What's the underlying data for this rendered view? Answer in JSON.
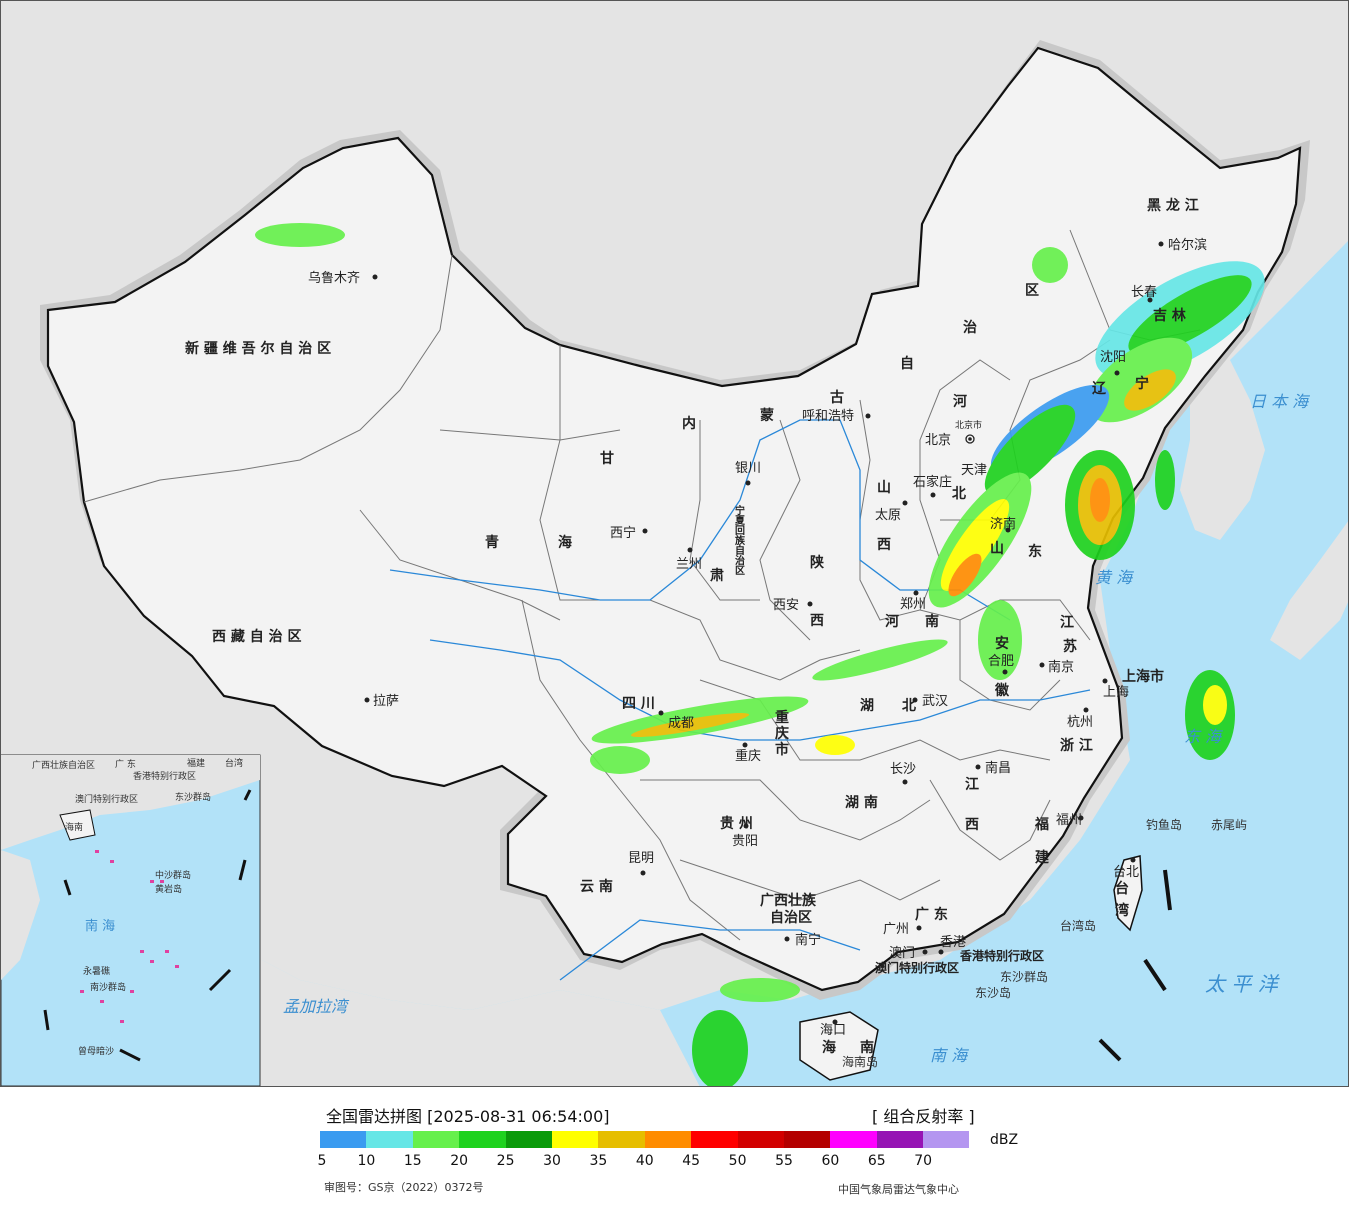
{
  "map": {
    "provinces": [
      {
        "key": "xinjiang",
        "text": "新 疆 维 吾 尔 自 治 区"
      },
      {
        "key": "xizang",
        "text": "西 藏 自 治 区"
      },
      {
        "key": "qinghai_a",
        "text": "青"
      },
      {
        "key": "qinghai_b",
        "text": "海"
      },
      {
        "key": "gansu_a",
        "text": "甘"
      },
      {
        "key": "gansu_b",
        "text": "肃"
      },
      {
        "key": "nmg_a",
        "text": "内"
      },
      {
        "key": "nmg_b",
        "text": "蒙"
      },
      {
        "key": "nmg_c",
        "text": "古"
      },
      {
        "key": "nmg_d",
        "text": "自"
      },
      {
        "key": "nmg_e",
        "text": "治"
      },
      {
        "key": "nmg_f",
        "text": "区"
      },
      {
        "key": "heilongjiang",
        "text": "黑 龙 江"
      },
      {
        "key": "jilin",
        "text": "吉 林"
      },
      {
        "key": "liaoning_a",
        "text": "辽"
      },
      {
        "key": "liaoning_b",
        "text": "宁"
      },
      {
        "key": "hebei_a",
        "text": "河"
      },
      {
        "key": "hebei_b",
        "text": "北"
      },
      {
        "key": "shanxi_a",
        "text": "山"
      },
      {
        "key": "shanxi_b",
        "text": "西"
      },
      {
        "key": "shaanxi_a",
        "text": "陕"
      },
      {
        "key": "shaanxi_b",
        "text": "西"
      },
      {
        "key": "ningxia",
        "text": "宁夏回族自治区"
      },
      {
        "key": "shandong_a",
        "text": "山"
      },
      {
        "key": "shandong_b",
        "text": "东"
      },
      {
        "key": "henan_a",
        "text": "河"
      },
      {
        "key": "henan_b",
        "text": "南"
      },
      {
        "key": "jiangsu_a",
        "text": "江"
      },
      {
        "key": "jiangsu_b",
        "text": "苏"
      },
      {
        "key": "anhui_a",
        "text": "安"
      },
      {
        "key": "anhui_b",
        "text": "徽"
      },
      {
        "key": "shanghai",
        "text": "上海市"
      },
      {
        "key": "zhejiang",
        "text": "浙 江"
      },
      {
        "key": "sichuan",
        "text": "四 川"
      },
      {
        "key": "chongqing_a",
        "text": "重"
      },
      {
        "key": "chongqing_b",
        "text": "庆"
      },
      {
        "key": "chongqing_c",
        "text": "市"
      },
      {
        "key": "hubei_a",
        "text": "湖"
      },
      {
        "key": "hubei_b",
        "text": "北"
      },
      {
        "key": "hunan",
        "text": "湖 南"
      },
      {
        "key": "jiangxi_a",
        "text": "江"
      },
      {
        "key": "jiangxi_b",
        "text": "西"
      },
      {
        "key": "fujian_a",
        "text": "福"
      },
      {
        "key": "fujian_b",
        "text": "建"
      },
      {
        "key": "guizhou",
        "text": "贵 州"
      },
      {
        "key": "yunnan",
        "text": "云 南"
      },
      {
        "key": "guangxi_a",
        "text": "广西壮族"
      },
      {
        "key": "guangxi_b",
        "text": "自治区"
      },
      {
        "key": "guangdong",
        "text": "广 东"
      },
      {
        "key": "hainan_a",
        "text": "海"
      },
      {
        "key": "hainan_b",
        "text": "南"
      },
      {
        "key": "taiwan_a",
        "text": "台"
      },
      {
        "key": "taiwan_b",
        "text": "湾"
      },
      {
        "key": "hk",
        "text": "香港特别行政区"
      },
      {
        "key": "macau",
        "text": "澳门特别行政区"
      }
    ],
    "cities": [
      {
        "key": "urumqi",
        "text": "乌鲁木齐"
      },
      {
        "key": "lhasa",
        "text": "拉萨"
      },
      {
        "key": "xining",
        "text": "西宁"
      },
      {
        "key": "lanzhou",
        "text": "兰州"
      },
      {
        "key": "yinchuan",
        "text": "银川"
      },
      {
        "key": "hohhot",
        "text": "呼和浩特"
      },
      {
        "key": "beijing",
        "text": "北京"
      },
      {
        "key": "beijingshi",
        "text": "北京市"
      },
      {
        "key": "tianjin",
        "text": "天津"
      },
      {
        "key": "shijiazhuang",
        "text": "石家庄"
      },
      {
        "key": "taiyuan",
        "text": "太原"
      },
      {
        "key": "xian",
        "text": "西安"
      },
      {
        "key": "zhengzhou",
        "text": "郑州"
      },
      {
        "key": "jinan",
        "text": "济南"
      },
      {
        "key": "shenyang",
        "text": "沈阳"
      },
      {
        "key": "changchun",
        "text": "长春"
      },
      {
        "key": "harbin",
        "text": "哈尔滨"
      },
      {
        "key": "nanjing",
        "text": "南京"
      },
      {
        "key": "hefei",
        "text": "合肥"
      },
      {
        "key": "shanghai",
        "text": "上海"
      },
      {
        "key": "hangzhou",
        "text": "杭州"
      },
      {
        "key": "wuhan",
        "text": "武汉"
      },
      {
        "key": "chengdu",
        "text": "成都"
      },
      {
        "key": "chongqing",
        "text": "重庆"
      },
      {
        "key": "changsha",
        "text": "长沙"
      },
      {
        "key": "nanchang",
        "text": "南昌"
      },
      {
        "key": "fuzhou",
        "text": "福州"
      },
      {
        "key": "guiyang",
        "text": "贵阳"
      },
      {
        "key": "kunming",
        "text": "昆明"
      },
      {
        "key": "nanning",
        "text": "南宁"
      },
      {
        "key": "guangzhou",
        "text": "广州"
      },
      {
        "key": "macau",
        "text": "澳门"
      },
      {
        "key": "hongkong",
        "text": "香港"
      },
      {
        "key": "haikou",
        "text": "海口"
      },
      {
        "key": "taibei",
        "text": "台北"
      }
    ],
    "seas": [
      {
        "key": "japan_sea",
        "text": "日 本 海"
      },
      {
        "key": "yellow_sea",
        "text": "黄 海"
      },
      {
        "key": "east_sea",
        "text": "东 海"
      },
      {
        "key": "south_sea",
        "text": "南 海"
      },
      {
        "key": "pacific",
        "text": "太 平 洋"
      },
      {
        "key": "bengal",
        "text": "孟加拉湾"
      }
    ],
    "islands": [
      {
        "key": "diaoyu",
        "text": "钓鱼岛"
      },
      {
        "key": "chiwei",
        "text": "赤尾屿"
      },
      {
        "key": "taiwan_island",
        "text": "台湾岛"
      },
      {
        "key": "dongsha",
        "text": "东沙群岛"
      },
      {
        "key": "dongsha_dao",
        "text": "东沙岛"
      },
      {
        "key": "hainan_island",
        "text": "海南岛"
      }
    ],
    "inset": {
      "labels": [
        {
          "key": "i_gx",
          "text": "广西壮族自治区"
        },
        {
          "key": "i_gd",
          "text": "广 东"
        },
        {
          "key": "i_fj",
          "text": "福建"
        },
        {
          "key": "i_tw",
          "text": "台湾"
        },
        {
          "key": "i_hk",
          "text": "香港特别行政区"
        },
        {
          "key": "i_mo",
          "text": "澳门特别行政区"
        },
        {
          "key": "i_ds",
          "text": "东沙群岛"
        },
        {
          "key": "i_hn",
          "text": "海南"
        },
        {
          "key": "i_sea",
          "text": "南 海"
        },
        {
          "key": "i_zs",
          "text": "中沙群岛"
        },
        {
          "key": "i_hy",
          "text": "黄岩岛"
        },
        {
          "key": "i_ns",
          "text": "南沙群岛"
        },
        {
          "key": "i_zm",
          "text": "曾母暗沙"
        },
        {
          "key": "i_yx",
          "text": "永暑礁"
        }
      ]
    }
  },
  "legend": {
    "title": "全国雷达拼图 [2025-08-31 06:54:00]",
    "type": "[ 组合反射率 ]",
    "unit": "dBZ",
    "colors": [
      "#3a9bf0",
      "#66e6e6",
      "#66f04c",
      "#1ed21e",
      "#0a9a0a",
      "#ffff00",
      "#e6be00",
      "#ff8c00",
      "#ff0000",
      "#d20000",
      "#b40000",
      "#ff00ff",
      "#9614b4",
      "#b496f0"
    ],
    "ticks": [
      "5",
      "10",
      "15",
      "20",
      "25",
      "30",
      "35",
      "40",
      "45",
      "50",
      "55",
      "60",
      "65",
      "70"
    ],
    "footer_left": "审图号：GS京（2022）0372号",
    "footer_right": "中国气象局雷达气象中心"
  }
}
